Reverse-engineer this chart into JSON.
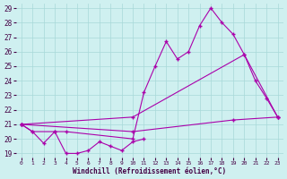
{
  "xlabel": "Windchill (Refroidissement éolien,°C)",
  "bg_color": "#cff0f0",
  "grid_color": "#a8d8d8",
  "line_color": "#aa00aa",
  "ylim": [
    19,
    29
  ],
  "yticks": [
    19,
    20,
    21,
    22,
    23,
    24,
    25,
    26,
    27,
    28,
    29
  ],
  "xticks": [
    0,
    1,
    2,
    3,
    4,
    5,
    6,
    7,
    8,
    9,
    10,
    11,
    12,
    13,
    14,
    15,
    16,
    17,
    18,
    19,
    20,
    21,
    22,
    23
  ],
  "line1_x": [
    0,
    1,
    2,
    3,
    4,
    5,
    6,
    7,
    8,
    9,
    10,
    11
  ],
  "line1_y": [
    21.0,
    20.5,
    19.7,
    20.5,
    19.0,
    19.0,
    19.2,
    19.8,
    19.5,
    19.2,
    19.8,
    20.0
  ],
  "line2_x": [
    0,
    1,
    3,
    4,
    10,
    11,
    12,
    13,
    14,
    15,
    16,
    17,
    18,
    19,
    20,
    21,
    22,
    23
  ],
  "line2_y": [
    21.0,
    20.5,
    20.5,
    20.5,
    20.0,
    23.2,
    25.0,
    26.7,
    25.5,
    26.0,
    27.8,
    29.0,
    28.0,
    27.2,
    25.8,
    24.0,
    22.8,
    21.5
  ],
  "line3_x": [
    0,
    10,
    20,
    23
  ],
  "line3_y": [
    21.0,
    21.5,
    25.8,
    21.5
  ],
  "line4_x": [
    0,
    10,
    19,
    23
  ],
  "line4_y": [
    21.0,
    20.5,
    21.3,
    21.5
  ]
}
